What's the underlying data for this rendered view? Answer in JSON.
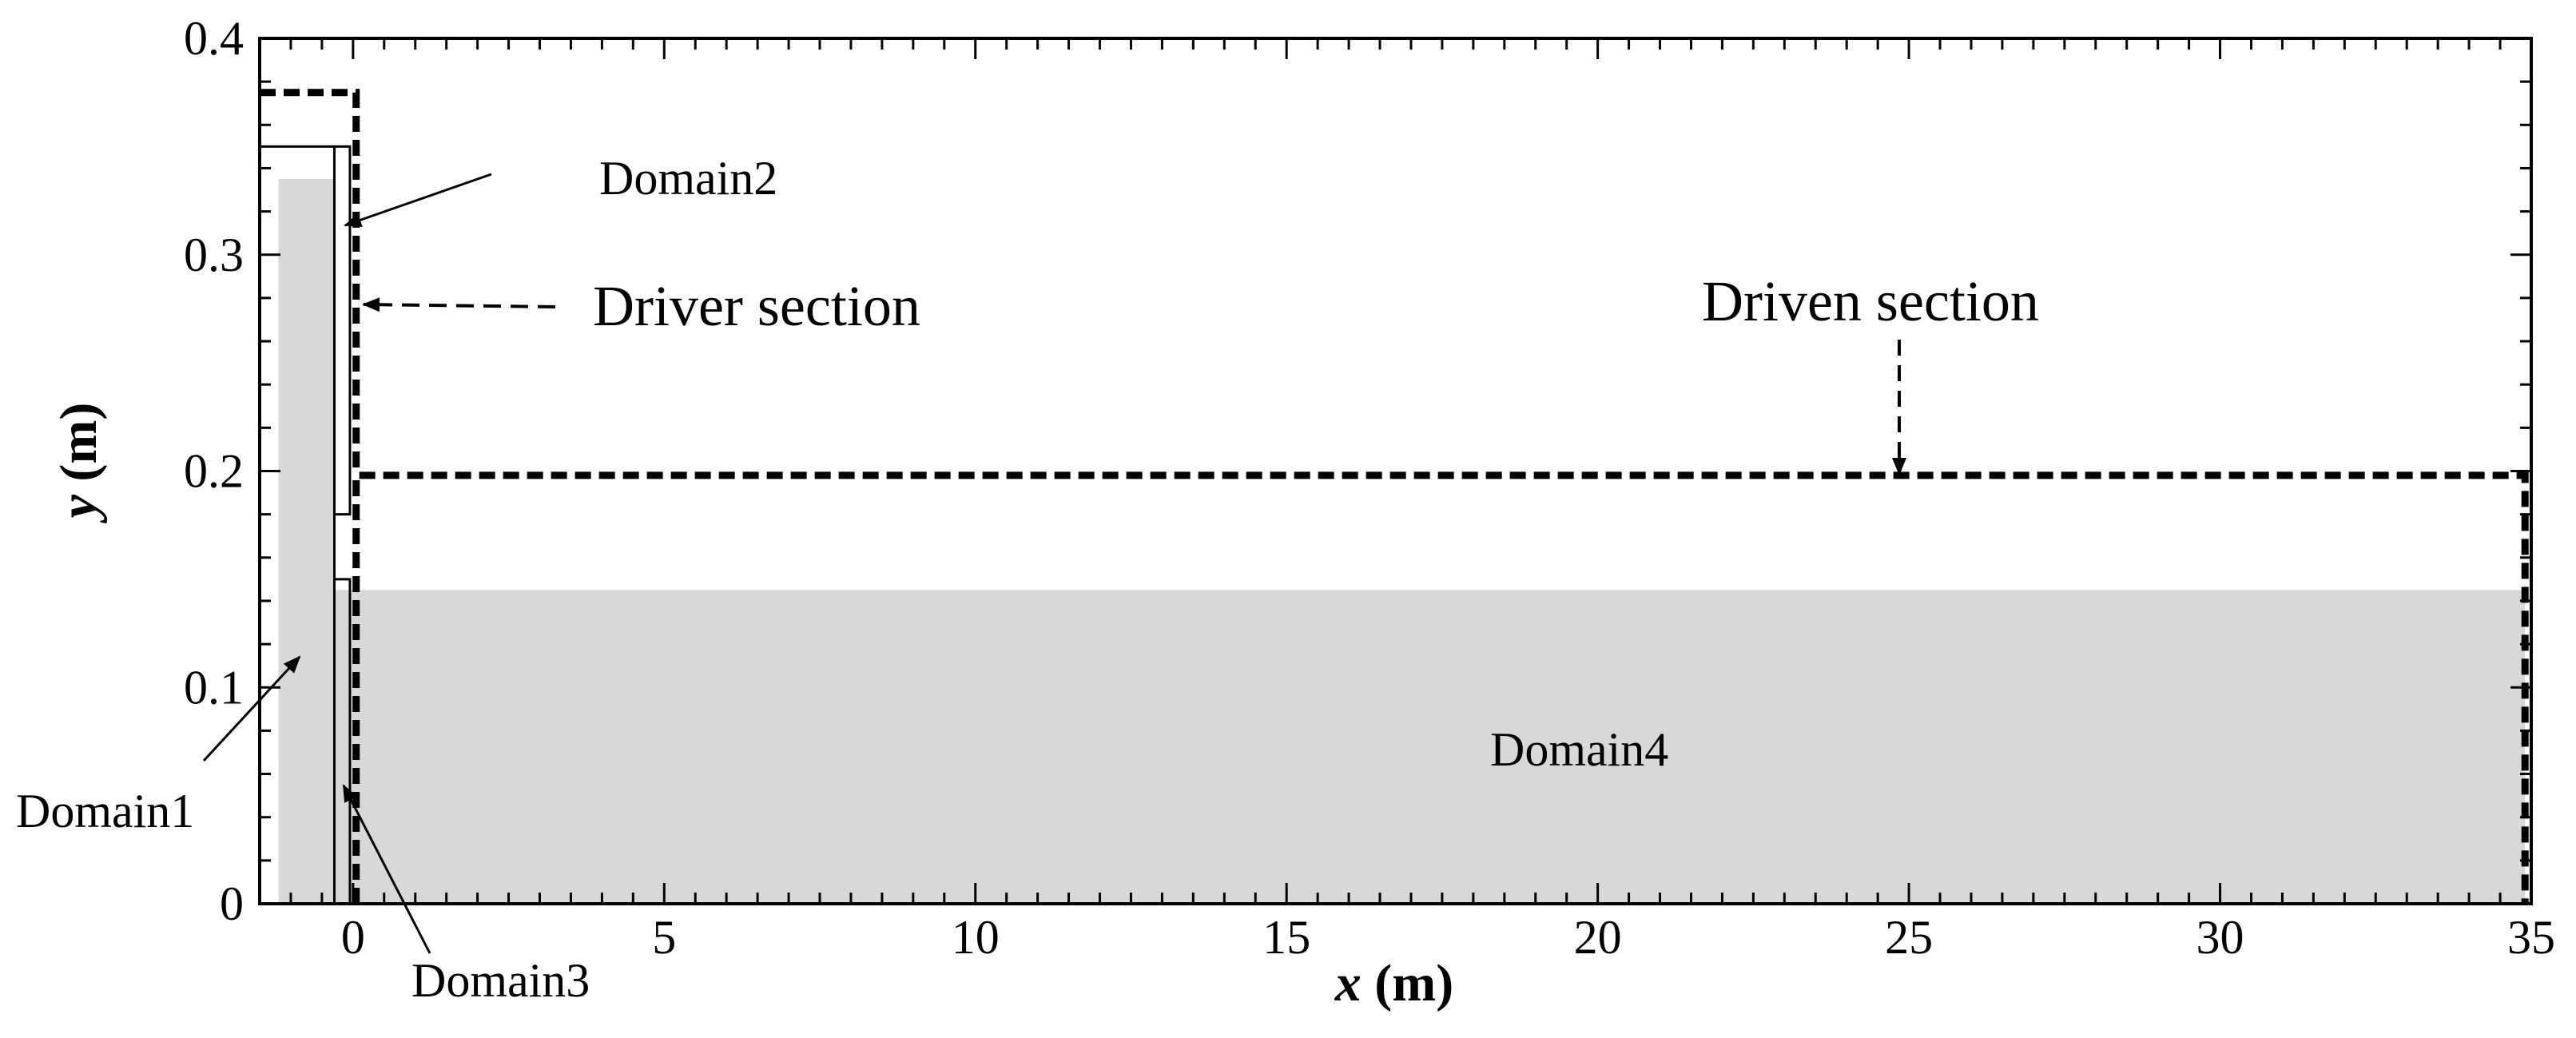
{
  "diagram": {
    "x_axis": {
      "label_var": "x",
      "label_unit": " (m)",
      "range": [
        -1.5,
        35
      ],
      "major_ticks": [
        0,
        5,
        10,
        15,
        20,
        25,
        30,
        35
      ],
      "tick_labels": [
        "0",
        "5",
        "10",
        "15",
        "20",
        "25",
        "30",
        "35"
      ],
      "minor_ticks": [
        -1,
        -0.5,
        0.5,
        1,
        1.5,
        2,
        2.5,
        3,
        3.5,
        4,
        4.5,
        5.5,
        6,
        6.5,
        7,
        7.5,
        8,
        8.5,
        9,
        9.5,
        10.5,
        11,
        11.5,
        12,
        12.5,
        13,
        13.5,
        14,
        14.5,
        15.5,
        16,
        16.5,
        17,
        17.5,
        18,
        18.5,
        19,
        19.5,
        20.5,
        21,
        21.5,
        22,
        22.5,
        23,
        23.5,
        24,
        24.5,
        25.5,
        26,
        26.5,
        27,
        27.5,
        28,
        28.5,
        29,
        29.5,
        30.5,
        31,
        31.5,
        32,
        32.5,
        33,
        33.5,
        34,
        34.5
      ]
    },
    "y_axis": {
      "label_var": "y",
      "label_unit": " (m)",
      "range": [
        0,
        0.4
      ],
      "major_ticks": [
        0,
        0.1,
        0.2,
        0.3,
        0.4
      ],
      "tick_labels": [
        "0",
        "0.1",
        "0.2",
        "0.3",
        "0.4"
      ],
      "minor_ticks": [
        0.02,
        0.04,
        0.06,
        0.08,
        0.12,
        0.14,
        0.16,
        0.18,
        0.22,
        0.24,
        0.26,
        0.28,
        0.32,
        0.34,
        0.36,
        0.38
      ]
    },
    "regions": {
      "domain1_fill": {
        "x": [
          -1.2,
          -0.3
        ],
        "y": [
          0,
          0.335
        ]
      },
      "domain4_fill": {
        "x": [
          -0.3,
          34.9
        ],
        "y": [
          0,
          0.145
        ]
      },
      "reservoir_outline": {
        "x": [
          -1.5,
          -0.3
        ],
        "y": [
          0,
          0.35
        ]
      },
      "gate_strip": {
        "x": [
          -0.3,
          -0.05
        ],
        "y": [
          0.18,
          0.35
        ]
      },
      "gate_lower": {
        "x": [
          -0.3,
          -0.05
        ],
        "y": [
          0,
          0.15
        ]
      },
      "driver_section": {
        "x": [
          -1.5,
          0.05
        ],
        "y_top": 0.375
      },
      "driven_section": {
        "x": [
          0.05,
          34.9
        ],
        "y_top": 0.198
      }
    },
    "colors": {
      "fill": "#d8d8d8",
      "line": "#000000",
      "background": "#ffffff"
    },
    "labels": {
      "domain1": "Domain1",
      "domain2": "Domain2",
      "domain3": "Domain3",
      "domain4": "Domain4",
      "driver_section": "Driver section",
      "driven_section": "Driven section"
    }
  }
}
